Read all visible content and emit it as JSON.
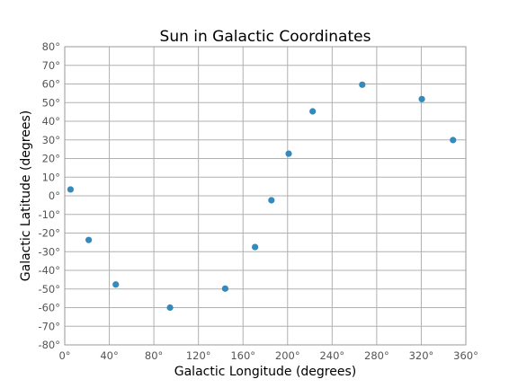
{
  "chart_data": {
    "type": "scatter",
    "title": "Sun in Galactic Coordinates",
    "xlabel": "Galactic Longitude (degrees)",
    "ylabel": "Galactic Latitude (degrees)",
    "xlim": [
      0,
      360
    ],
    "ylim": [
      -80,
      80
    ],
    "grid": true,
    "legend": "none",
    "colors": {
      "marker": "#348abd",
      "grid": "#b0b0b0",
      "frame": "#9a9a9a"
    },
    "x_ticks": [
      0,
      40,
      80,
      120,
      160,
      200,
      240,
      280,
      320,
      360
    ],
    "x_tick_labels": [
      "0°",
      "40°",
      "80°",
      "120°",
      "160°",
      "200°",
      "240°",
      "280°",
      "320°",
      "360°"
    ],
    "y_ticks": [
      80,
      70,
      60,
      50,
      40,
      30,
      20,
      10,
      0,
      -10,
      -20,
      -30,
      -40,
      -50,
      -60,
      -70,
      -80
    ],
    "y_tick_labels": [
      "80°",
      "70°",
      "60°",
      "50°",
      "40°",
      "30°",
      "20°",
      "10°",
      "0°",
      "-10°",
      "-20°",
      "-30°",
      "-40°",
      "-50°",
      "-60°",
      "-70°",
      "-80°"
    ],
    "series": [
      {
        "x": [
          5.2,
          21.5,
          45.8,
          94.5,
          144.0,
          170.8,
          185.5,
          201.0,
          222.5,
          267.0,
          320.5,
          348.5
        ],
        "y": [
          3.4,
          -23.7,
          -47.6,
          -60.0,
          -49.8,
          -27.5,
          -2.4,
          22.6,
          45.3,
          59.6,
          51.9,
          29.9
        ]
      }
    ]
  }
}
